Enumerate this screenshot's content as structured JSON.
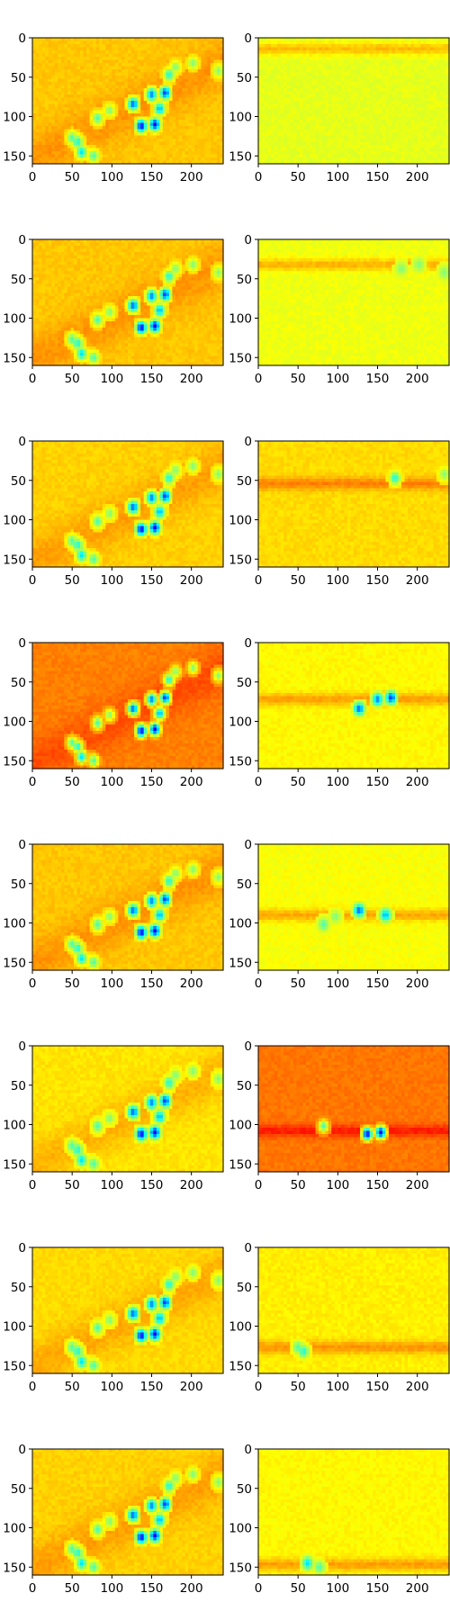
{
  "colors": {
    "colormap": [
      "#00007f",
      "#0000ff",
      "#0080ff",
      "#00ffff",
      "#80ff80",
      "#ffff00",
      "#ff8000",
      "#ff0000",
      "#7f0000"
    ],
    "frame": "#000000",
    "background": "#ffffff"
  },
  "chart_data": {
    "type": "heatmap",
    "layout": "8 rows x 2 columns of image panels",
    "image_size": [
      240,
      160
    ],
    "xticks": [
      0,
      50,
      100,
      150,
      200
    ],
    "yticks": [
      0,
      50,
      100,
      150
    ],
    "xlim": [
      0,
      240
    ],
    "ylim": [
      160,
      0
    ],
    "colormap": "jet",
    "title": "",
    "xlabel": "",
    "ylabel": "",
    "panels": [
      {
        "row": 0,
        "col": 0,
        "background": 0.68,
        "band_y": null
      },
      {
        "row": 0,
        "col": 1,
        "background": 0.6,
        "band_y": 12
      },
      {
        "row": 1,
        "col": 0,
        "background": 0.68,
        "band_y": null
      },
      {
        "row": 1,
        "col": 1,
        "background": 0.61,
        "band_y": 30
      },
      {
        "row": 2,
        "col": 0,
        "background": 0.67,
        "band_y": null
      },
      {
        "row": 2,
        "col": 1,
        "background": 0.66,
        "band_y": 52
      },
      {
        "row": 3,
        "col": 0,
        "background": 0.75,
        "band_y": null
      },
      {
        "row": 3,
        "col": 1,
        "background": 0.63,
        "band_y": 70
      },
      {
        "row": 4,
        "col": 0,
        "background": 0.68,
        "band_y": null
      },
      {
        "row": 4,
        "col": 1,
        "background": 0.62,
        "band_y": 88
      },
      {
        "row": 5,
        "col": 0,
        "background": 0.65,
        "band_y": null
      },
      {
        "row": 5,
        "col": 1,
        "background": 0.76,
        "band_y": 106
      },
      {
        "row": 6,
        "col": 0,
        "background": 0.66,
        "band_y": null
      },
      {
        "row": 6,
        "col": 1,
        "background": 0.64,
        "band_y": 125
      },
      {
        "row": 7,
        "col": 0,
        "background": 0.67,
        "band_y": null
      },
      {
        "row": 7,
        "col": 1,
        "background": 0.63,
        "band_y": 145
      }
    ],
    "hotspots": [
      {
        "x": 55,
        "y": 130,
        "v": 0.4
      },
      {
        "x": 60,
        "y": 143,
        "v": 0.35
      },
      {
        "x": 75,
        "y": 148,
        "v": 0.45
      },
      {
        "x": 48,
        "y": 125,
        "v": 0.45
      },
      {
        "x": 80,
        "y": 100,
        "v": 0.45
      },
      {
        "x": 95,
        "y": 90,
        "v": 0.5
      },
      {
        "x": 125,
        "y": 82,
        "v": 0.22
      },
      {
        "x": 135,
        "y": 110,
        "v": 0.12
      },
      {
        "x": 152,
        "y": 108,
        "v": 0.12
      },
      {
        "x": 148,
        "y": 70,
        "v": 0.25
      },
      {
        "x": 165,
        "y": 68,
        "v": 0.18
      },
      {
        "x": 170,
        "y": 45,
        "v": 0.4
      },
      {
        "x": 178,
        "y": 35,
        "v": 0.5
      },
      {
        "x": 200,
        "y": 30,
        "v": 0.5
      },
      {
        "x": 232,
        "y": 40,
        "v": 0.5
      },
      {
        "x": 158,
        "y": 88,
        "v": 0.3
      }
    ]
  }
}
